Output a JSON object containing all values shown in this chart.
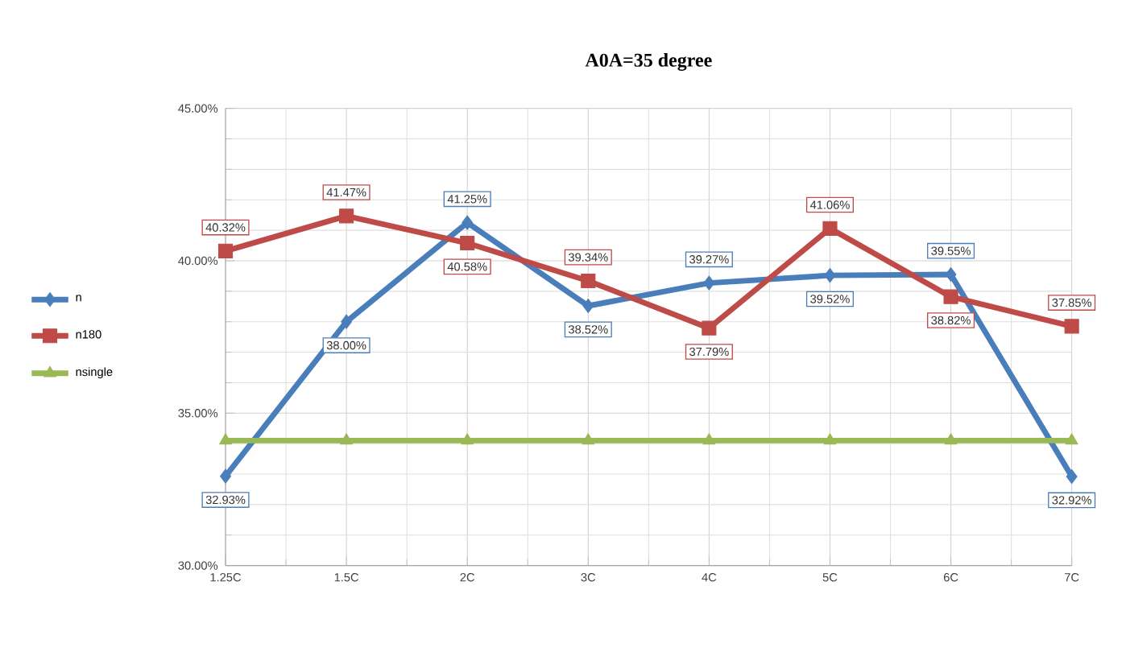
{
  "chart_data": {
    "type": "line",
    "title": "A0A=35 degree",
    "categories": [
      "1.25C",
      "1.5C",
      "2C",
      "3C",
      "4C",
      "5C",
      "6C",
      "7C"
    ],
    "series": [
      {
        "name": "n",
        "color": "#4a7ebb",
        "marker": "diamond",
        "values": [
          32.93,
          38.0,
          41.25,
          38.52,
          39.27,
          39.52,
          39.55,
          32.92
        ],
        "value_labels": [
          "32.93%",
          "38.00%",
          "41.25%",
          "38.52%",
          "39.27%",
          "39.52%",
          "39.55%",
          "32.92%"
        ]
      },
      {
        "name": "n180",
        "color": "#be4b48",
        "marker": "square",
        "values": [
          40.32,
          41.47,
          40.58,
          39.34,
          37.79,
          41.06,
          38.82,
          37.85
        ],
        "value_labels": [
          "40.32%",
          "41.47%",
          "40.58%",
          "39.34%",
          "37.79%",
          "41.06%",
          "38.82%",
          "37.85%"
        ]
      },
      {
        "name": "nsingle",
        "color": "#98b954",
        "marker": "triangle",
        "values": [
          34.1,
          34.1,
          34.1,
          34.1,
          34.1,
          34.1,
          34.1,
          34.1
        ]
      }
    ],
    "ylim": [
      30,
      45
    ],
    "yticks": [
      {
        "value": 30,
        "label": "30.00%"
      },
      {
        "value": 35,
        "label": "35.00%"
      },
      {
        "value": 40,
        "label": "40.00%"
      },
      {
        "value": 45,
        "label": "45.00%"
      }
    ],
    "grid": true,
    "legend": "left",
    "line_style": "solid"
  }
}
